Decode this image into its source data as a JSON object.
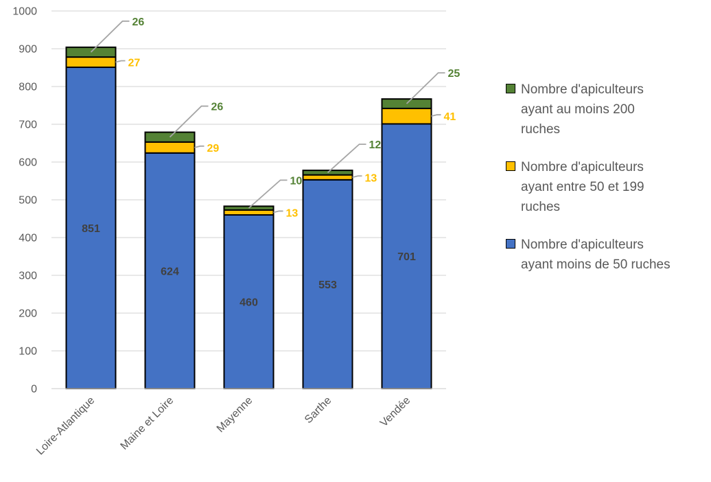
{
  "chart_data": {
    "type": "bar",
    "stacked": true,
    "categories": [
      "Loire-Atlantique",
      "Maine et Loire",
      "Mayenne",
      "Sarthe",
      "Vendée"
    ],
    "series": [
      {
        "name": "Nombre d'apiculteurs ayant moins de 50 ruches",
        "values": [
          851,
          624,
          460,
          553,
          701
        ],
        "color": "#4472C4",
        "label_color": "#404040"
      },
      {
        "name": "Nombre d'apiculteurs ayant entre 50 et 199 ruches",
        "values": [
          27,
          29,
          13,
          13,
          41
        ],
        "color": "#FFC000",
        "label_color": "#FFC000"
      },
      {
        "name": "Nombre d'apiculteurs ayant au moins 200 ruches",
        "values": [
          26,
          26,
          10,
          12,
          25
        ],
        "color": "#548235",
        "label_color": "#548235"
      }
    ],
    "ylim": [
      0,
      1000
    ],
    "yticks": [
      "0",
      "100",
      "200",
      "300",
      "400",
      "500",
      "600",
      "700",
      "800",
      "900",
      "1000"
    ],
    "grid": true,
    "legend_position": "right",
    "legend_entries": [
      [
        "Nombre d'apiculteurs",
        "ayant au moins 200",
        "ruches"
      ],
      [
        "Nombre d'apiculteurs",
        "ayant entre 50 et 199",
        "ruches"
      ],
      [
        "Nombre d'apiculteurs",
        "ayant moins de 50 ruches"
      ]
    ]
  }
}
